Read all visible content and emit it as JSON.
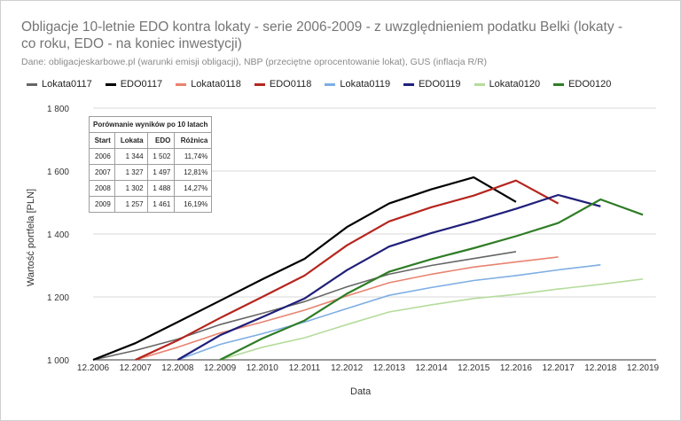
{
  "title_line1": "Obligacje 10-letnie EDO kontra lokaty - serie 2006-2009 - z uwzględnieniem podatku Belki (lokaty -",
  "title_line2": "co roku, EDO - na koniec inwestycji)",
  "subtitle": "Dane: obligacjeskarbowe.pl (warunki emisji obligacji), NBP (przeciętne oprocentowanie lokat), GUS (inflacja R/R)",
  "table": {
    "title": "Porównanie wyników po 10 latach",
    "headers": [
      "Start",
      "Lokata",
      "EDO",
      "Różnica"
    ],
    "rows": [
      [
        "2006",
        "1 344",
        "1 502",
        "11,74%"
      ],
      [
        "2007",
        "1 327",
        "1 497",
        "12,81%"
      ],
      [
        "2008",
        "1 302",
        "1 488",
        "14,27%"
      ],
      [
        "2009",
        "1 257",
        "1 461",
        "16,19%"
      ]
    ]
  },
  "chart_data": {
    "type": "line",
    "xlabel": "Data",
    "ylabel": "Wartość portfela [PLN]",
    "categories": [
      "12.2006",
      "12.2007",
      "12.2008",
      "12.2009",
      "12.2010",
      "12.2011",
      "12.2012",
      "12.2013",
      "12.2014",
      "12.2015",
      "12.2016",
      "12.2017",
      "12.2018",
      "12.2019"
    ],
    "y_ticks": [
      1000,
      1200,
      1400,
      1600,
      1800
    ],
    "y_tick_labels": [
      "1 000",
      "1 200",
      "1 400",
      "1 600",
      "1 800"
    ],
    "ylim": [
      1000,
      1800
    ],
    "grid": true,
    "legend_position": "top",
    "series": [
      {
        "name": "Lokata0117",
        "color": "#666666",
        "width": 1.6,
        "values": [
          1000,
          1030,
          1066,
          1112,
          1148,
          1185,
          1232,
          1272,
          1300,
          1322,
          1344,
          null,
          null,
          null
        ]
      },
      {
        "name": "EDO0117",
        "color": "#000000",
        "width": 2.2,
        "values": [
          1000,
          1053,
          1120,
          1188,
          1256,
          1321,
          1422,
          1497,
          1542,
          1580,
          1502,
          null,
          null,
          null
        ]
      },
      {
        "name": "Lokata0118",
        "color": "#e8836f",
        "width": 1.6,
        "values": [
          null,
          1000,
          1040,
          1085,
          1120,
          1158,
          1203,
          1245,
          1272,
          1295,
          1311,
          1327,
          null,
          null
        ]
      },
      {
        "name": "EDO0118",
        "color": "#b5261e",
        "width": 2.2,
        "values": [
          null,
          1000,
          1062,
          1133,
          1200,
          1268,
          1364,
          1440,
          1485,
          1522,
          1570,
          1497,
          null,
          null
        ]
      },
      {
        "name": "Lokata0119",
        "color": "#7eaee4",
        "width": 1.6,
        "values": [
          null,
          null,
          1000,
          1049,
          1083,
          1120,
          1163,
          1205,
          1230,
          1252,
          1268,
          1286,
          1302,
          null
        ]
      },
      {
        "name": "EDO0119",
        "color": "#1f1f7a",
        "width": 2.2,
        "values": [
          null,
          null,
          1000,
          1078,
          1136,
          1195,
          1285,
          1360,
          1403,
          1440,
          1480,
          1524,
          1488,
          null
        ]
      },
      {
        "name": "Lokata0120",
        "color": "#b5dc9c",
        "width": 1.6,
        "values": [
          null,
          null,
          null,
          1000,
          1040,
          1070,
          1112,
          1152,
          1175,
          1195,
          1208,
          1225,
          1240,
          1257
        ]
      },
      {
        "name": "EDO0120",
        "color": "#2f7d26",
        "width": 2.2,
        "values": [
          null,
          null,
          null,
          1000,
          1068,
          1125,
          1210,
          1280,
          1320,
          1355,
          1393,
          1435,
          1510,
          1461
        ]
      }
    ]
  }
}
